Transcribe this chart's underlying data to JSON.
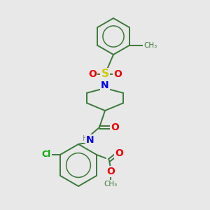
{
  "background_color": "#e8e8e8",
  "bond_color": "#3a7a3a",
  "atom_colors": {
    "N": "#0000ee",
    "O": "#ee0000",
    "S": "#cccc00",
    "Cl": "#00aa00",
    "C": "#3a7a3a",
    "H": "#888888"
  },
  "figsize": [
    3.0,
    3.0
  ],
  "dpi": 100
}
